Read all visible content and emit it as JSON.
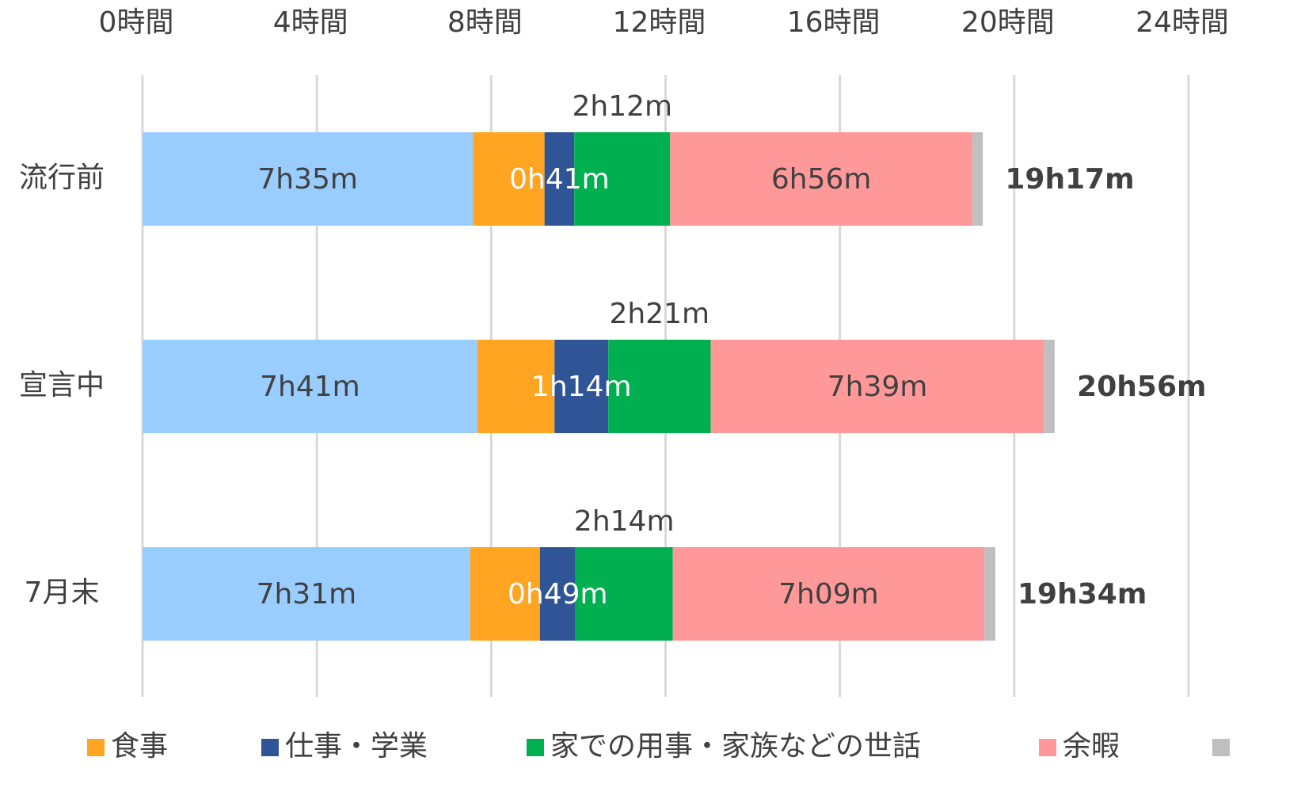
{
  "chart_data": {
    "type": "stacked-barh",
    "categories": [
      "流行前",
      "宣言中",
      "7月末"
    ],
    "xlim": [
      0,
      24
    ],
    "xticks": [
      {
        "value": 0,
        "label": "0時間"
      },
      {
        "value": 4,
        "label": "4時間"
      },
      {
        "value": 8,
        "label": "8時間"
      },
      {
        "value": 12,
        "label": "12時間"
      },
      {
        "value": 16,
        "label": "16時間"
      },
      {
        "value": 20,
        "label": "20時間"
      },
      {
        "value": 24,
        "label": "24時間"
      }
    ],
    "grid": true,
    "series": [
      {
        "name": null,
        "color": "#99ccff",
        "values": [
          7.583,
          7.683,
          7.517
        ],
        "value_labels": [
          "7h35m",
          "7h41m",
          "7h31m"
        ]
      },
      {
        "name": "食事",
        "color": "#ffa521",
        "values": [
          1.64,
          1.77,
          1.6
        ]
      },
      {
        "name": "仕事・学業",
        "color": "#2f5597",
        "values": [
          0.683,
          1.233,
          0.817
        ],
        "value_labels": [
          "0h41m",
          "1h14m",
          "0h49m"
        ]
      },
      {
        "name": "家での用事・家族などの世話",
        "color": "#00b050",
        "values": [
          2.2,
          2.35,
          2.233
        ],
        "value_labels": [
          "2h12m",
          "2h21m",
          "2h14m"
        ]
      },
      {
        "name": "余暇",
        "color": "#ff9999",
        "values": [
          6.933,
          7.65,
          7.15
        ],
        "value_labels": [
          "6h56m",
          "7h39m",
          "7h09m"
        ]
      },
      {
        "name": null,
        "color": "#bfbfbf",
        "values": [
          0.24,
          0.24,
          0.25
        ]
      }
    ],
    "totals": {
      "values": [
        19.283,
        20.933,
        19.567
      ],
      "value_labels": [
        "19h17m",
        "20h56m",
        "19h34m"
      ]
    }
  }
}
